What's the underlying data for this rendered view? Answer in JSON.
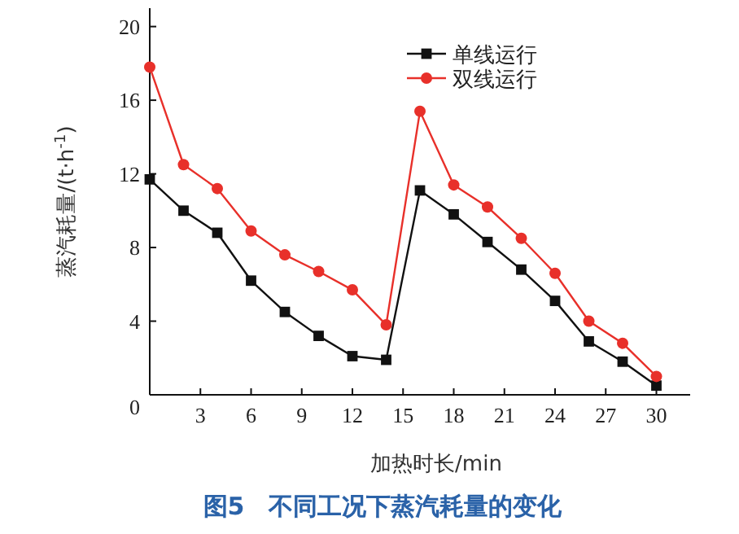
{
  "chart_data": {
    "type": "line",
    "title": "图5　不同工况下蒸汽耗量的变化",
    "xlabel": "加热时长/min",
    "ylabel": "蒸汽耗量/(t·h$^{-1}$)",
    "x": [
      0,
      2,
      4,
      6,
      8,
      10,
      12,
      14,
      16,
      18,
      20,
      22,
      24,
      26,
      28,
      30
    ],
    "series": [
      {
        "name": "单线运行",
        "color": "#111111",
        "marker": "square",
        "values": [
          11.7,
          10.0,
          8.8,
          6.2,
          4.5,
          3.2,
          2.1,
          1.9,
          11.1,
          9.8,
          8.3,
          6.8,
          5.1,
          2.9,
          1.8,
          0.5
        ]
      },
      {
        "name": "双线运行",
        "color": "#e8302a",
        "marker": "circle",
        "values": [
          17.8,
          12.5,
          11.2,
          8.9,
          7.6,
          6.7,
          5.7,
          3.8,
          15.4,
          11.4,
          10.2,
          8.5,
          6.6,
          4.0,
          2.8,
          1.0
        ]
      }
    ],
    "xlim": [
      0,
      32
    ],
    "ylim": [
      0,
      21
    ],
    "xticks": [
      {
        "value": 0,
        "label": null
      },
      3,
      6,
      9,
      12,
      15,
      18,
      21,
      24,
      27,
      30
    ],
    "yticks": [
      0,
      4,
      8,
      12,
      16,
      20
    ],
    "grid": false,
    "legend": "top right",
    "line_style": "solid"
  }
}
